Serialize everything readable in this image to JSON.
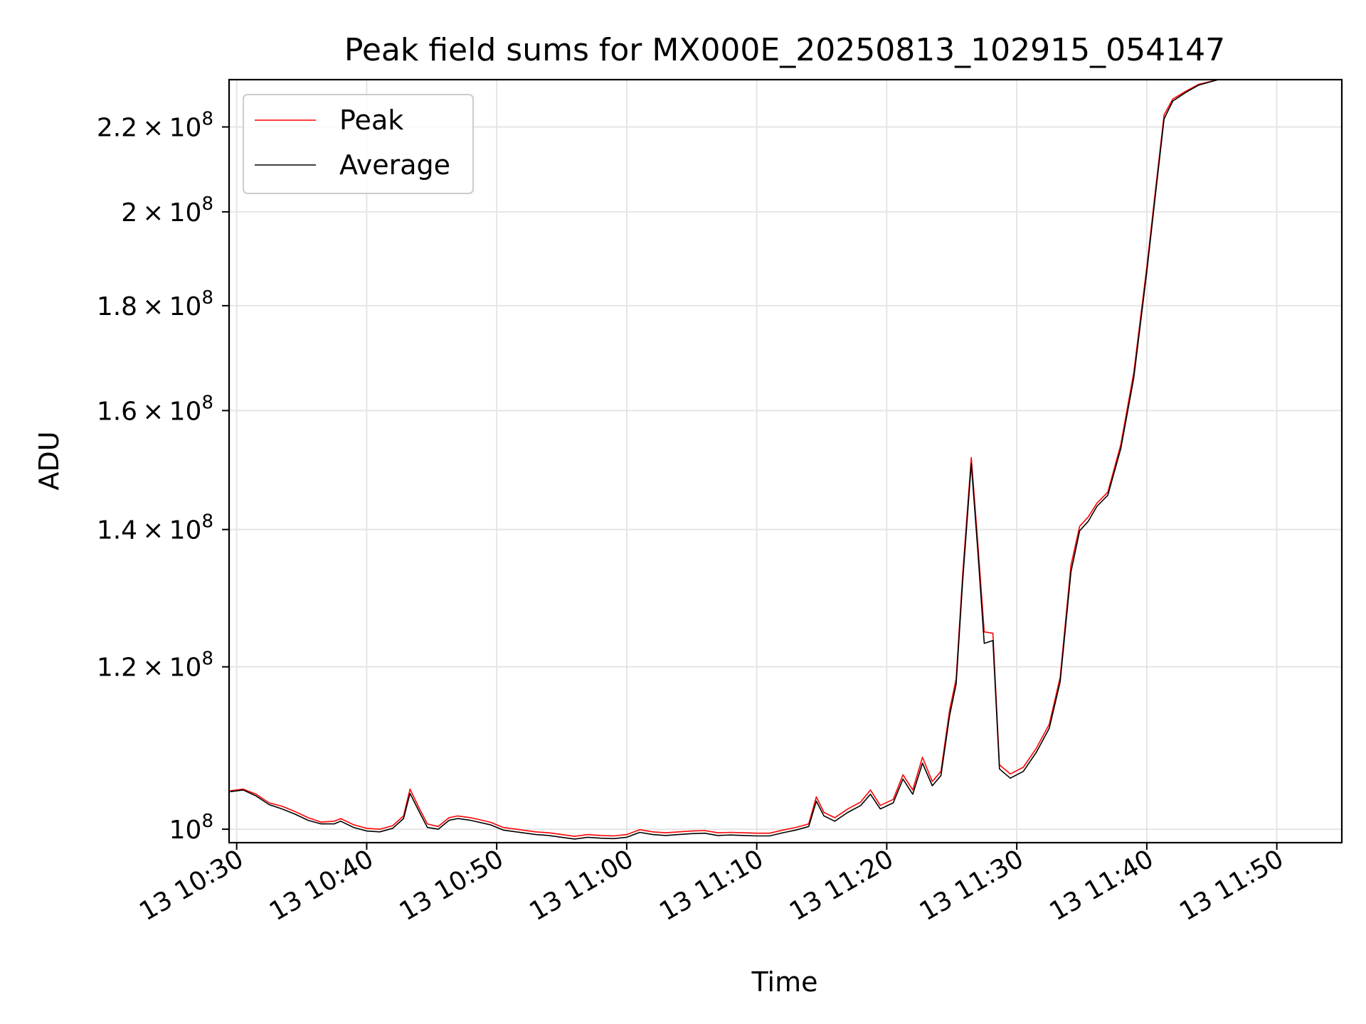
{
  "chart_data": {
    "type": "line",
    "title": "Peak field sums for MX000E_20250813_102915_054147",
    "xlabel": "Time",
    "ylabel": "ADU",
    "y_scale": "log",
    "xlim": [
      "2025-08-13 10:29:25",
      "2025-08-13 11:55:00"
    ],
    "ylim": [
      98500000,
      232000000
    ],
    "grid": true,
    "legend_position": "top-left",
    "x_ticks": [
      {
        "time": "2025-08-13 10:30",
        "label": "13 10:30"
      },
      {
        "time": "2025-08-13 10:40",
        "label": "13 10:40"
      },
      {
        "time": "2025-08-13 10:50",
        "label": "13 10:50"
      },
      {
        "time": "2025-08-13 11:00",
        "label": "13 11:00"
      },
      {
        "time": "2025-08-13 11:10",
        "label": "13 11:10"
      },
      {
        "time": "2025-08-13 11:20",
        "label": "13 11:20"
      },
      {
        "time": "2025-08-13 11:30",
        "label": "13 11:30"
      },
      {
        "time": "2025-08-13 11:40",
        "label": "13 11:40"
      },
      {
        "time": "2025-08-13 11:50",
        "label": "13 11:50"
      }
    ],
    "y_ticks": [
      {
        "value": 100000000,
        "mantissa": "",
        "base": "10",
        "exp": "8"
      },
      {
        "value": 120000000,
        "mantissa": "1.2",
        "base": "10",
        "exp": "8"
      },
      {
        "value": 140000000,
        "mantissa": "1.4",
        "base": "10",
        "exp": "8"
      },
      {
        "value": 160000000,
        "mantissa": "1.6",
        "base": "10",
        "exp": "8"
      },
      {
        "value": 180000000,
        "mantissa": "1.8",
        "base": "10",
        "exp": "8"
      },
      {
        "value": 200000000,
        "mantissa": "2",
        "base": "10",
        "exp": "8"
      },
      {
        "value": 220000000,
        "mantissa": "2.2",
        "base": "10",
        "exp": "8"
      }
    ],
    "series": [
      {
        "name": "Peak",
        "color": "#ff0000",
        "points": [
          [
            "2025-08-13 10:29:30",
            104400000
          ],
          [
            "2025-08-13 10:30:30",
            104600000
          ],
          [
            "2025-08-13 10:31:30",
            104000000
          ],
          [
            "2025-08-13 10:32:30",
            103000000
          ],
          [
            "2025-08-13 10:33:30",
            102600000
          ],
          [
            "2025-08-13 10:34:30",
            102000000
          ],
          [
            "2025-08-13 10:35:30",
            101300000
          ],
          [
            "2025-08-13 10:36:30",
            100800000
          ],
          [
            "2025-08-13 10:37:30",
            100900000
          ],
          [
            "2025-08-13 10:38:00",
            101200000
          ],
          [
            "2025-08-13 10:39:00",
            100500000
          ],
          [
            "2025-08-13 10:40:00",
            100100000
          ],
          [
            "2025-08-13 10:41:00",
            100000000
          ],
          [
            "2025-08-13 10:42:00",
            100400000
          ],
          [
            "2025-08-13 10:42:50",
            101500000
          ],
          [
            "2025-08-13 10:43:20",
            104600000
          ],
          [
            "2025-08-13 10:44:00",
            102500000
          ],
          [
            "2025-08-13 10:44:40",
            100600000
          ],
          [
            "2025-08-13 10:45:30",
            100300000
          ],
          [
            "2025-08-13 10:46:20",
            101300000
          ],
          [
            "2025-08-13 10:47:00",
            101500000
          ],
          [
            "2025-08-13 10:48:00",
            101300000
          ],
          [
            "2025-08-13 10:49:30",
            100800000
          ],
          [
            "2025-08-13 10:50:30",
            100200000
          ],
          [
            "2025-08-13 10:52:00",
            99900000
          ],
          [
            "2025-08-13 10:53:00",
            99700000
          ],
          [
            "2025-08-13 10:54:00",
            99600000
          ],
          [
            "2025-08-13 10:55:00",
            99400000
          ],
          [
            "2025-08-13 10:56:00",
            99200000
          ],
          [
            "2025-08-13 10:57:00",
            99400000
          ],
          [
            "2025-08-13 10:58:00",
            99300000
          ],
          [
            "2025-08-13 10:59:00",
            99250000
          ],
          [
            "2025-08-13 11:00:00",
            99400000
          ],
          [
            "2025-08-13 11:01:00",
            99950000
          ],
          [
            "2025-08-13 11:02:00",
            99700000
          ],
          [
            "2025-08-13 11:03:00",
            99600000
          ],
          [
            "2025-08-13 11:04:00",
            99700000
          ],
          [
            "2025-08-13 11:05:00",
            99800000
          ],
          [
            "2025-08-13 11:06:00",
            99850000
          ],
          [
            "2025-08-13 11:07:00",
            99600000
          ],
          [
            "2025-08-13 11:08:00",
            99650000
          ],
          [
            "2025-08-13 11:09:00",
            99600000
          ],
          [
            "2025-08-13 11:10:00",
            99550000
          ],
          [
            "2025-08-13 11:11:00",
            99550000
          ],
          [
            "2025-08-13 11:12:00",
            99900000
          ],
          [
            "2025-08-13 11:13:00",
            100200000
          ],
          [
            "2025-08-13 11:14:00",
            100600000
          ],
          [
            "2025-08-13 11:14:35",
            103700000
          ],
          [
            "2025-08-13 11:15:10",
            101900000
          ],
          [
            "2025-08-13 11:16:00",
            101300000
          ],
          [
            "2025-08-13 11:17:00",
            102300000
          ],
          [
            "2025-08-13 11:18:00",
            103100000
          ],
          [
            "2025-08-13 11:18:45",
            104500000
          ],
          [
            "2025-08-13 11:19:30",
            102700000
          ],
          [
            "2025-08-13 11:20:30",
            103400000
          ],
          [
            "2025-08-13 11:21:15",
            106300000
          ],
          [
            "2025-08-13 11:22:00",
            104500000
          ],
          [
            "2025-08-13 11:22:45",
            108400000
          ],
          [
            "2025-08-13 11:23:30",
            105500000
          ],
          [
            "2025-08-13 11:24:10",
            106700000
          ],
          [
            "2025-08-13 11:24:50",
            114300000
          ],
          [
            "2025-08-13 11:25:20",
            118400000
          ],
          [
            "2025-08-13 11:25:50",
            133000000
          ],
          [
            "2025-08-13 11:26:30",
            151800000
          ],
          [
            "2025-08-13 11:27:00",
            138000000
          ],
          [
            "2025-08-13 11:27:30",
            124800000
          ],
          [
            "2025-08-13 11:28:10",
            124600000
          ],
          [
            "2025-08-13 11:28:40",
            107500000
          ],
          [
            "2025-08-13 11:29:30",
            106400000
          ],
          [
            "2025-08-13 11:30:30",
            107200000
          ],
          [
            "2025-08-13 11:31:30",
            109500000
          ],
          [
            "2025-08-13 11:32:30",
            112500000
          ],
          [
            "2025-08-13 11:33:20",
            118600000
          ],
          [
            "2025-08-13 11:34:10",
            134500000
          ],
          [
            "2025-08-13 11:34:50",
            140500000
          ],
          [
            "2025-08-13 11:35:30",
            142000000
          ],
          [
            "2025-08-13 11:36:10",
            144200000
          ],
          [
            "2025-08-13 11:37:00",
            146000000
          ],
          [
            "2025-08-13 11:38:00",
            154000000
          ],
          [
            "2025-08-13 11:39:00",
            167000000
          ],
          [
            "2025-08-13 11:40:00",
            188000000
          ],
          [
            "2025-08-13 11:40:40",
            205000000
          ],
          [
            "2025-08-13 11:41:20",
            223000000
          ],
          [
            "2025-08-13 11:42:00",
            227000000
          ],
          [
            "2025-08-13 11:43:00",
            229000000
          ],
          [
            "2025-08-13 11:44:00",
            230800000
          ],
          [
            "2025-08-13 11:45:30",
            232000000
          ]
        ]
      },
      {
        "name": "Average",
        "color": "#000000",
        "points": [
          [
            "2025-08-13 10:29:30",
            104300000
          ],
          [
            "2025-08-13 10:30:30",
            104500000
          ],
          [
            "2025-08-13 10:31:30",
            103800000
          ],
          [
            "2025-08-13 10:32:30",
            102800000
          ],
          [
            "2025-08-13 10:33:30",
            102300000
          ],
          [
            "2025-08-13 10:34:30",
            101700000
          ],
          [
            "2025-08-13 10:35:30",
            101000000
          ],
          [
            "2025-08-13 10:36:30",
            100600000
          ],
          [
            "2025-08-13 10:37:30",
            100600000
          ],
          [
            "2025-08-13 10:38:00",
            100900000
          ],
          [
            "2025-08-13 10:39:00",
            100200000
          ],
          [
            "2025-08-13 10:40:00",
            99800000
          ],
          [
            "2025-08-13 10:41:00",
            99700000
          ],
          [
            "2025-08-13 10:42:00",
            100100000
          ],
          [
            "2025-08-13 10:42:50",
            101200000
          ],
          [
            "2025-08-13 10:43:20",
            104100000
          ],
          [
            "2025-08-13 10:44:00",
            102100000
          ],
          [
            "2025-08-13 10:44:40",
            100200000
          ],
          [
            "2025-08-13 10:45:30",
            100000000
          ],
          [
            "2025-08-13 10:46:20",
            101000000
          ],
          [
            "2025-08-13 10:47:00",
            101200000
          ],
          [
            "2025-08-13 10:48:00",
            101000000
          ],
          [
            "2025-08-13 10:49:30",
            100500000
          ],
          [
            "2025-08-13 10:50:30",
            99900000
          ],
          [
            "2025-08-13 10:52:00",
            99600000
          ],
          [
            "2025-08-13 10:53:00",
            99400000
          ],
          [
            "2025-08-13 10:54:00",
            99300000
          ],
          [
            "2025-08-13 10:55:00",
            99100000
          ],
          [
            "2025-08-13 10:56:00",
            98900000
          ],
          [
            "2025-08-13 10:57:00",
            99100000
          ],
          [
            "2025-08-13 10:58:00",
            99000000
          ],
          [
            "2025-08-13 10:59:00",
            98950000
          ],
          [
            "2025-08-13 11:00:00",
            99100000
          ],
          [
            "2025-08-13 11:01:00",
            99650000
          ],
          [
            "2025-08-13 11:02:00",
            99400000
          ],
          [
            "2025-08-13 11:03:00",
            99300000
          ],
          [
            "2025-08-13 11:04:00",
            99400000
          ],
          [
            "2025-08-13 11:05:00",
            99500000
          ],
          [
            "2025-08-13 11:06:00",
            99550000
          ],
          [
            "2025-08-13 11:07:00",
            99300000
          ],
          [
            "2025-08-13 11:08:00",
            99350000
          ],
          [
            "2025-08-13 11:09:00",
            99300000
          ],
          [
            "2025-08-13 11:10:00",
            99250000
          ],
          [
            "2025-08-13 11:11:00",
            99250000
          ],
          [
            "2025-08-13 11:12:00",
            99600000
          ],
          [
            "2025-08-13 11:13:00",
            99900000
          ],
          [
            "2025-08-13 11:14:00",
            100300000
          ],
          [
            "2025-08-13 11:14:35",
            103200000
          ],
          [
            "2025-08-13 11:15:10",
            101500000
          ],
          [
            "2025-08-13 11:16:00",
            100900000
          ],
          [
            "2025-08-13 11:17:00",
            101900000
          ],
          [
            "2025-08-13 11:18:00",
            102700000
          ],
          [
            "2025-08-13 11:18:45",
            104000000
          ],
          [
            "2025-08-13 11:19:30",
            102300000
          ],
          [
            "2025-08-13 11:20:30",
            103000000
          ],
          [
            "2025-08-13 11:21:15",
            105800000
          ],
          [
            "2025-08-13 11:22:00",
            104000000
          ],
          [
            "2025-08-13 11:22:45",
            107700000
          ],
          [
            "2025-08-13 11:23:30",
            105000000
          ],
          [
            "2025-08-13 11:24:10",
            106200000
          ],
          [
            "2025-08-13 11:24:50",
            113600000
          ],
          [
            "2025-08-13 11:25:20",
            117700000
          ],
          [
            "2025-08-13 11:25:50",
            132000000
          ],
          [
            "2025-08-13 11:26:30",
            150800000
          ],
          [
            "2025-08-13 11:27:00",
            136800000
          ],
          [
            "2025-08-13 11:27:30",
            123200000
          ],
          [
            "2025-08-13 11:28:10",
            123600000
          ],
          [
            "2025-08-13 11:28:40",
            107000000
          ],
          [
            "2025-08-13 11:29:30",
            105900000
          ],
          [
            "2025-08-13 11:30:30",
            106700000
          ],
          [
            "2025-08-13 11:31:30",
            109000000
          ],
          [
            "2025-08-13 11:32:30",
            112000000
          ],
          [
            "2025-08-13 11:33:20",
            118000000
          ],
          [
            "2025-08-13 11:34:10",
            133500000
          ],
          [
            "2025-08-13 11:34:50",
            139800000
          ],
          [
            "2025-08-13 11:35:30",
            141300000
          ],
          [
            "2025-08-13 11:36:10",
            143700000
          ],
          [
            "2025-08-13 11:37:00",
            145500000
          ],
          [
            "2025-08-13 11:38:00",
            153300000
          ],
          [
            "2025-08-13 11:39:00",
            166000000
          ],
          [
            "2025-08-13 11:40:00",
            187000000
          ],
          [
            "2025-08-13 11:40:40",
            204000000
          ],
          [
            "2025-08-13 11:41:20",
            222000000
          ],
          [
            "2025-08-13 11:42:00",
            226500000
          ],
          [
            "2025-08-13 11:43:00",
            228700000
          ],
          [
            "2025-08-13 11:44:00",
            230600000
          ],
          [
            "2025-08-13 11:45:30",
            232000000
          ]
        ]
      }
    ]
  }
}
